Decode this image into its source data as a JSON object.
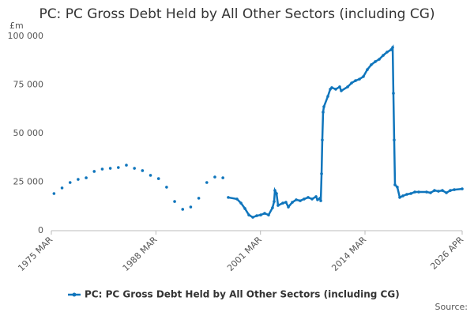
{
  "chart_data": {
    "type": "line",
    "title": "PC: PC Gross Debt Held by All Other Sectors (including CG)",
    "y_label": "£m",
    "source": "Source:",
    "grid": false,
    "legend": "bottom",
    "ylim": [
      0,
      100000
    ],
    "yticks": [
      0,
      {
        "value": 25000,
        "label": "25 000"
      },
      {
        "value": 50000,
        "label": "50 000"
      },
      {
        "value": 75000,
        "label": "75 000"
      },
      {
        "value": 100000,
        "label": "100 000"
      }
    ],
    "xlim": [
      1975.17,
      2026.25
    ],
    "xticks": [
      {
        "value": 1975.17,
        "label": "1975 MAR"
      },
      {
        "value": 1988.17,
        "label": "1988 MAR"
      },
      {
        "value": 2001.17,
        "label": "2001 MAR"
      },
      {
        "value": 2014.17,
        "label": "2014 MAR"
      },
      {
        "value": 2026.25,
        "label": "2026 APR"
      }
    ],
    "series": [
      {
        "name": "PC: PC Gross Debt Held by All Other Sectors (including CG)",
        "color": "#0f75bc",
        "x": [
          1975.5,
          null,
          1976.5,
          null,
          1977.5,
          null,
          1978.5,
          null,
          1979.5,
          null,
          1980.5,
          null,
          1981.5,
          null,
          1982.5,
          null,
          1983.5,
          null,
          1984.5,
          null,
          1985.5,
          null,
          1986.5,
          null,
          1987.5,
          null,
          1988.5,
          null,
          1989.5,
          null,
          1990.5,
          null,
          1991.5,
          null,
          1992.5,
          null,
          1993.5,
          null,
          1994.5,
          null,
          1995.5,
          null,
          1996.5,
          null,
          1997.17,
          1998.25,
          1998.75,
          1999.24,
          1999.73,
          2000.22,
          2000.71,
          2001.2,
          2001.69,
          2002.18,
          2002.67,
          2002.87,
          2002.97,
          2003.17,
          2003.36,
          2003.95,
          2004.34,
          2004.64,
          2005.13,
          2005.62,
          2006.11,
          2006.6,
          2007.1,
          2007.59,
          2008.08,
          2008.27,
          2008.57,
          2008.67,
          2008.77,
          2008.86,
          2008.96,
          2009.06,
          2009.55,
          2009.85,
          2010.04,
          2010.53,
          2011.02,
          2011.22,
          2012.01,
          2012.5,
          2012.99,
          2013.48,
          2013.97,
          2014.46,
          2014.95,
          2015.45,
          2015.94,
          2016.43,
          2016.92,
          2017.41,
          2017.61,
          2017.7,
          2017.8,
          2017.9,
          2018.19,
          2018.49,
          2018.88,
          2019.37,
          2019.87,
          2020.36,
          2020.85,
          2021.83,
          2022.32,
          2022.81,
          2023.3,
          2023.79,
          2024.29,
          2024.78,
          2025.27,
          2026.25
        ],
        "values": [
          19100,
          null,
          22000,
          null,
          24800,
          null,
          26400,
          null,
          27200,
          null,
          30500,
          null,
          31700,
          null,
          32100,
          null,
          32500,
          null,
          33700,
          null,
          32100,
          null,
          30900,
          null,
          28500,
          null,
          26800,
          null,
          22400,
          null,
          15000,
          null,
          11000,
          null,
          12200,
          null,
          16700,
          null,
          24800,
          null,
          27600,
          null,
          27200,
          null,
          17100,
          16300,
          14200,
          11400,
          8100,
          6900,
          7700,
          8100,
          8900,
          8100,
          11800,
          15000,
          20700,
          19100,
          13000,
          14200,
          14600,
          12200,
          14600,
          15900,
          15400,
          16300,
          17100,
          16300,
          17500,
          15900,
          16700,
          15400,
          29300,
          46700,
          61000,
          63800,
          69100,
          72800,
          73600,
          72800,
          74000,
          72000,
          74000,
          76000,
          77200,
          78000,
          79300,
          82900,
          85400,
          87000,
          88200,
          90200,
          91900,
          93100,
          94300,
          70700,
          46700,
          23600,
          22400,
          17100,
          17900,
          18700,
          19100,
          19900,
          19900,
          19900,
          19500,
          20700,
          20300,
          20700,
          19500,
          20700,
          21100,
          21500
        ]
      }
    ]
  }
}
